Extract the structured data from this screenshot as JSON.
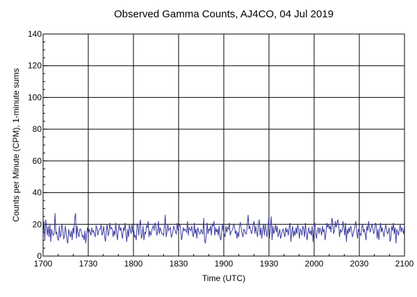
{
  "chart_data": {
    "type": "line",
    "title": "Observed Gamma Counts, AJ4CO, 04 Jul 2019",
    "xlabel": "Time (UTC)",
    "ylabel": "Counts per Minute (CPM), 1-minute sums",
    "x_tick_labels": [
      "1700",
      "1730",
      "1800",
      "1830",
      "1900",
      "1930",
      "2000",
      "2030",
      "2100"
    ],
    "y_tick_labels": [
      "0",
      "20",
      "40",
      "60",
      "80",
      "100",
      "120",
      "140"
    ],
    "xlim": [
      "1700",
      "2100"
    ],
    "ylim": [
      0,
      140
    ],
    "grid": true,
    "line_color": "#3a3aa0",
    "series": [
      {
        "values": [
          13,
          22,
          10,
          23,
          18,
          13,
          19,
          12,
          20,
          9,
          17,
          14,
          13,
          15,
          27,
          14,
          15,
          11,
          10,
          19,
          12,
          13,
          20,
          17,
          11,
          12,
          19,
          15,
          10,
          8,
          17,
          14,
          12,
          16,
          10,
          18,
          14,
          24,
          27,
          11,
          19,
          14,
          12,
          17,
          17,
          15,
          12,
          13,
          10,
          16,
          8,
          14,
          18,
          14,
          17,
          15,
          13,
          18,
          15,
          16,
          14,
          12,
          19,
          18,
          13,
          16,
          17,
          17,
          20,
          13,
          15,
          19,
          12,
          9,
          16,
          20,
          13,
          14,
          21,
          17,
          18,
          17,
          12,
          16,
          13,
          21,
          15,
          10,
          16,
          20,
          16,
          18,
          14,
          11,
          18,
          16,
          21,
          14,
          9,
          17,
          12,
          20,
          17,
          14,
          20,
          15,
          17,
          12,
          13,
          10,
          20,
          19,
          13,
          20,
          23,
          11,
          13,
          19,
          10,
          15,
          14,
          19,
          18,
          22,
          12,
          16,
          13,
          15,
          18,
          19,
          16,
          21,
          19,
          13,
          15,
          22,
          14,
          18,
          16,
          14,
          14,
          13,
          19,
          26,
          12,
          15,
          20,
          16,
          17,
          18,
          12,
          13,
          16,
          19,
          17,
          15,
          14,
          21,
          16,
          19,
          20,
          17,
          10,
          13,
          18,
          16,
          17,
          16,
          15,
          22,
          13,
          18,
          17,
          16,
          19,
          14,
          12,
          21,
          14,
          17,
          11,
          18,
          16,
          14,
          14,
          17,
          15,
          14,
          24,
          10,
          8,
          13,
          21,
          14,
          17,
          16,
          19,
          13,
          20,
          19,
          22,
          13,
          18,
          15,
          17,
          13,
          19,
          12,
          10,
          15,
          20,
          16,
          14,
          12,
          19,
          15,
          18,
          17,
          21,
          13,
          15,
          16,
          17,
          20,
          19,
          14,
          16,
          11,
          15,
          12,
          20,
          21,
          17,
          14,
          12,
          17,
          16,
          14,
          14,
          20,
          26,
          17,
          19,
          16,
          14,
          17,
          20,
          22,
          14,
          19,
          15,
          12,
          20,
          23,
          13,
          18,
          11,
          17,
          20,
          13,
          20,
          17,
          12,
          16,
          24,
          11,
          18,
          25,
          10,
          19,
          14,
          16,
          20,
          15,
          19,
          12,
          14,
          17,
          11,
          13,
          16,
          17,
          14,
          12,
          18,
          15,
          17,
          13,
          18,
          21,
          9,
          15,
          19,
          12,
          16,
          13,
          18,
          14,
          20,
          17,
          11,
          17,
          16,
          13,
          19,
          17,
          12,
          21,
          15,
          10,
          15,
          18,
          14,
          16,
          13,
          19,
          9,
          17,
          21,
          15,
          11,
          16,
          18,
          14,
          18,
          16,
          13,
          19,
          15,
          17,
          10,
          14,
          21,
          18,
          20,
          17,
          19,
          15,
          24,
          21,
          14,
          16,
          22,
          18,
          21,
          23,
          19,
          12,
          17,
          15,
          16,
          22,
          18,
          13,
          21,
          9,
          17,
          14,
          18,
          15,
          19,
          17,
          12,
          14,
          16,
          19,
          22,
          16,
          11,
          17,
          15,
          14,
          13,
          18,
          20,
          15,
          17,
          14,
          10,
          19,
          16,
          22,
          17,
          15,
          18,
          20,
          17,
          14,
          16,
          21,
          19,
          11,
          17,
          10,
          16,
          21,
          15,
          18,
          15,
          12,
          16,
          20,
          17,
          14,
          15,
          18,
          9,
          11,
          19,
          16,
          21,
          14,
          18,
          8,
          17,
          15,
          13,
          17,
          20,
          15,
          18,
          16,
          14,
          19
        ]
      }
    ]
  }
}
